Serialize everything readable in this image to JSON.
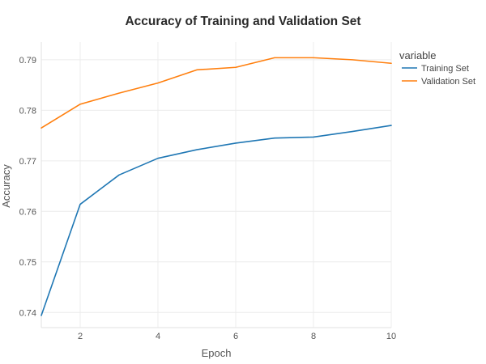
{
  "chart_data": {
    "type": "line",
    "title": "Accuracy of Training and Validation Set",
    "xlabel": "Epoch",
    "ylabel": "Accuracy",
    "x": [
      1,
      2,
      3,
      4,
      5,
      6,
      7,
      8,
      9,
      10
    ],
    "xlim": [
      1,
      10
    ],
    "ylim": [
      0.737,
      0.7935
    ],
    "xticks": [
      2,
      4,
      6,
      8,
      10
    ],
    "yticks": [
      0.74,
      0.75,
      0.76,
      0.77,
      0.78,
      0.79
    ],
    "grid": true,
    "legend": {
      "title": "variable",
      "placement": "top-right outside"
    },
    "series": [
      {
        "name": "Training Set",
        "color": "#1f77b4",
        "values": [
          0.7394,
          0.7614,
          0.7672,
          0.7705,
          0.7722,
          0.7735,
          0.7745,
          0.7747,
          0.7758,
          0.777
        ]
      },
      {
        "name": "Validation Set",
        "color": "#ff7f0e",
        "values": [
          0.7765,
          0.7812,
          0.7834,
          0.7854,
          0.788,
          0.7885,
          0.7904,
          0.7904,
          0.79,
          0.7893
        ]
      }
    ]
  }
}
